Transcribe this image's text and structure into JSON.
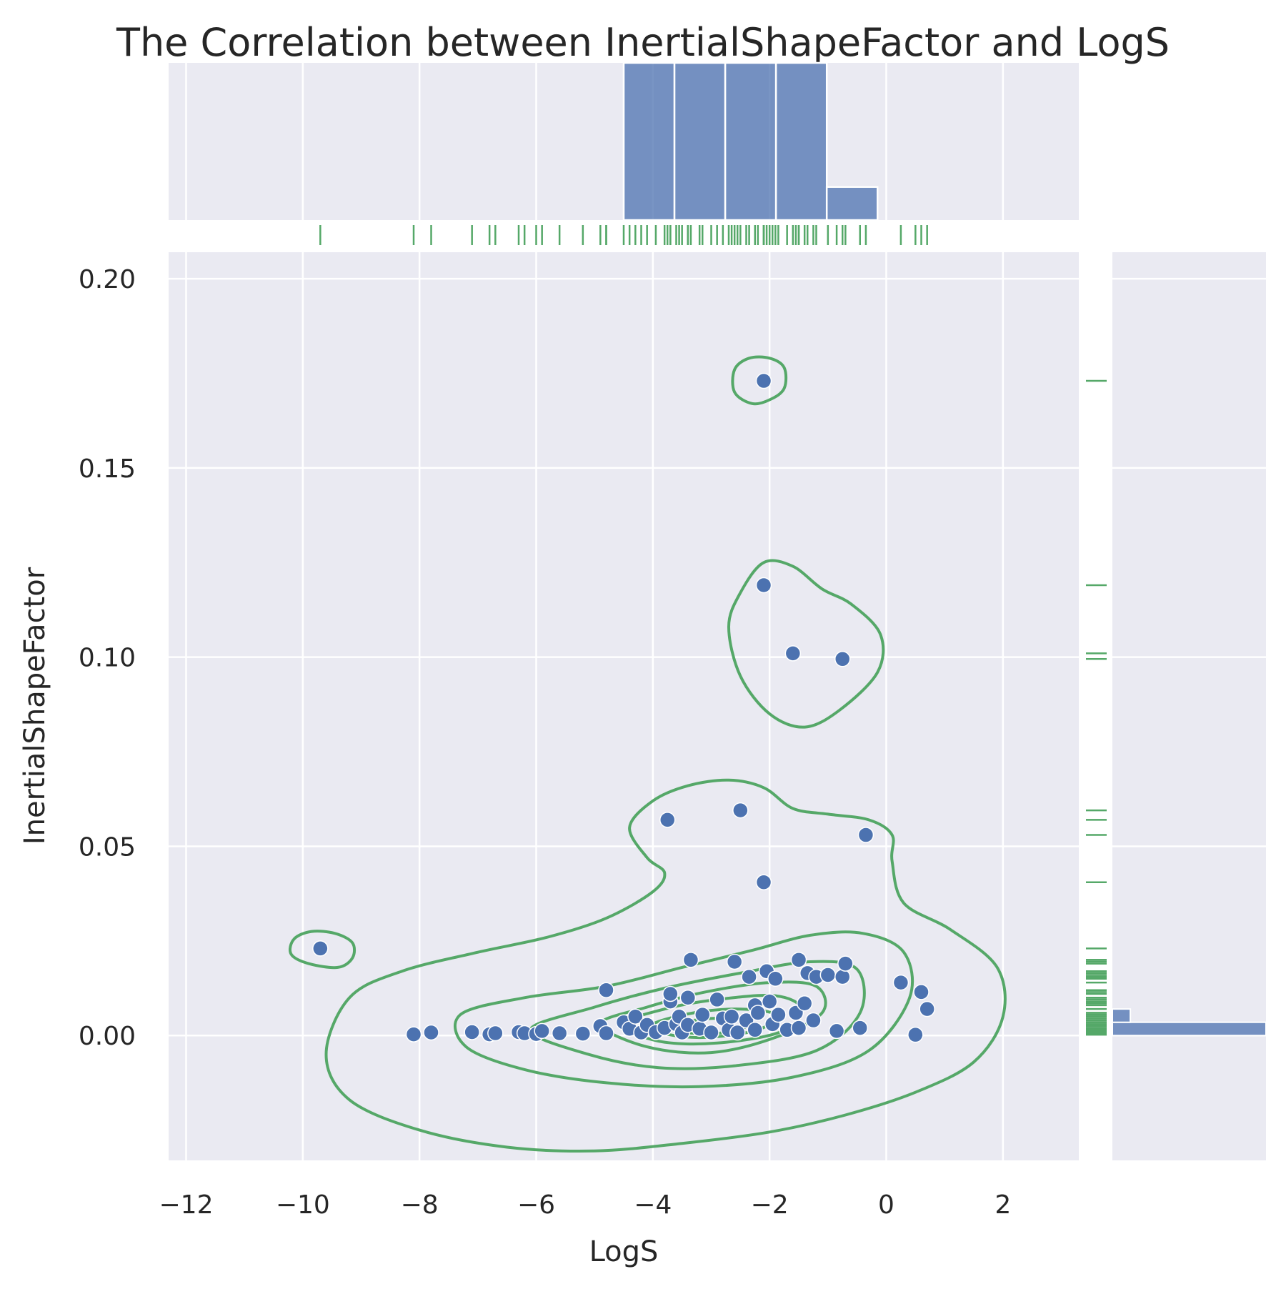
{
  "chart_data": {
    "type": "scatter",
    "title": "The Correlation between InertialShapeFactor and LogS",
    "xlabel": "LogS",
    "ylabel": "InertialShapeFactor",
    "xlim": [
      -12.3,
      3.3
    ],
    "ylim": [
      -0.033,
      0.207
    ],
    "x_ticks": [
      -12,
      -10,
      -8,
      -6,
      -4,
      -2,
      0,
      2
    ],
    "x_tick_labels": [
      "−12",
      "−10",
      "−8",
      "−6",
      "−4",
      "−2",
      "0",
      "2"
    ],
    "y_ticks": [
      0.0,
      0.05,
      0.1,
      0.15,
      0.2
    ],
    "y_tick_labels": [
      "0.00",
      "0.05",
      "0.10",
      "0.15",
      "0.20"
    ],
    "grid": true,
    "colors": {
      "background": "#eaeaf2",
      "grid": "#ffffff",
      "points": "#4c72b0",
      "kde": "#55a868",
      "rug": "#55a868",
      "hist": "#4c72b0"
    },
    "points": [
      [
        -9.7,
        0.023
      ],
      [
        -8.1,
        0.0003
      ],
      [
        -7.8,
        0.0008
      ],
      [
        -7.1,
        0.0009
      ],
      [
        -6.8,
        0.0003
      ],
      [
        -6.7,
        0.0006
      ],
      [
        -6.3,
        0.0009
      ],
      [
        -6.2,
        0.0006
      ],
      [
        -6.0,
        0.0004
      ],
      [
        -5.9,
        0.0012
      ],
      [
        -5.6,
        0.0006
      ],
      [
        -5.2,
        0.0005
      ],
      [
        -4.9,
        0.0025
      ],
      [
        -4.8,
        0.0006
      ],
      [
        -4.8,
        0.012
      ],
      [
        -4.5,
        0.0035
      ],
      [
        -4.4,
        0.0018
      ],
      [
        -4.3,
        0.005
      ],
      [
        -4.2,
        0.0008
      ],
      [
        -4.1,
        0.0028
      ],
      [
        -3.95,
        0.0009
      ],
      [
        -3.8,
        0.002
      ],
      [
        -3.75,
        0.057
      ],
      [
        -3.7,
        0.009
      ],
      [
        -3.7,
        0.011
      ],
      [
        -3.6,
        0.003
      ],
      [
        -3.55,
        0.005
      ],
      [
        -3.5,
        0.0008
      ],
      [
        -3.4,
        0.0028
      ],
      [
        -3.4,
        0.01
      ],
      [
        -3.35,
        0.02
      ],
      [
        -3.2,
        0.0018
      ],
      [
        -3.15,
        0.0055
      ],
      [
        -3.0,
        0.0008
      ],
      [
        -2.9,
        0.0095
      ],
      [
        -2.8,
        0.0045
      ],
      [
        -2.7,
        0.0015
      ],
      [
        -2.65,
        0.005
      ],
      [
        -2.6,
        0.0195
      ],
      [
        -2.55,
        0.0008
      ],
      [
        -2.5,
        0.0595
      ],
      [
        -2.4,
        0.004
      ],
      [
        -2.35,
        0.0155
      ],
      [
        -2.25,
        0.0015
      ],
      [
        -2.25,
        0.008
      ],
      [
        -2.2,
        0.006
      ],
      [
        -2.1,
        0.173
      ],
      [
        -2.1,
        0.119
      ],
      [
        -2.1,
        0.0405
      ],
      [
        -2.05,
        0.017
      ],
      [
        -2.0,
        0.009
      ],
      [
        -1.95,
        0.003
      ],
      [
        -1.9,
        0.015
      ],
      [
        -1.85,
        0.0055
      ],
      [
        -1.7,
        0.0015
      ],
      [
        -1.6,
        0.101
      ],
      [
        -1.55,
        0.006
      ],
      [
        -1.5,
        0.002
      ],
      [
        -1.5,
        0.02
      ],
      [
        -1.4,
        0.0085
      ],
      [
        -1.35,
        0.0165
      ],
      [
        -1.25,
        0.004
      ],
      [
        -1.2,
        0.0155
      ],
      [
        -1.0,
        0.016
      ],
      [
        -0.85,
        0.0012
      ],
      [
        -0.75,
        0.0995
      ],
      [
        -0.75,
        0.0155
      ],
      [
        -0.7,
        0.019
      ],
      [
        -0.45,
        0.002
      ],
      [
        -0.35,
        0.053
      ],
      [
        0.25,
        0.014
      ],
      [
        0.5,
        0.0002
      ],
      [
        0.6,
        0.0115
      ],
      [
        0.7,
        0.007
      ]
    ],
    "kde_levels": [
      [
        [
          -9.9,
          0.019
        ],
        [
          -9.4,
          0.018
        ],
        [
          -9.15,
          0.0205
        ],
        [
          -9.15,
          0.0245
        ],
        [
          -9.45,
          0.027
        ],
        [
          -9.85,
          0.0275
        ],
        [
          -10.15,
          0.0255
        ],
        [
          -10.2,
          0.0215
        ]
      ],
      [
        [
          -2.6,
          0.17
        ],
        [
          -2.3,
          0.167
        ],
        [
          -2.0,
          0.168
        ],
        [
          -1.75,
          0.171
        ],
        [
          -1.75,
          0.1765
        ],
        [
          -2.0,
          0.179
        ],
        [
          -2.35,
          0.179
        ],
        [
          -2.6,
          0.176
        ]
      ],
      [
        [
          -2.7,
          0.108
        ],
        [
          -2.5,
          0.117
        ],
        [
          -2.1,
          0.125
        ],
        [
          -1.6,
          0.124
        ],
        [
          -1.1,
          0.118
        ],
        [
          -0.6,
          0.114
        ],
        [
          -0.1,
          0.106
        ],
        [
          -0.15,
          0.096
        ],
        [
          -0.8,
          0.086
        ],
        [
          -1.4,
          0.0815
        ],
        [
          -2.0,
          0.085
        ],
        [
          -2.5,
          0.095
        ]
      ],
      [
        [
          -4.4,
          0.055
        ],
        [
          -4.0,
          0.062
        ],
        [
          -3.4,
          0.066
        ],
        [
          -2.7,
          0.0675
        ],
        [
          -2.1,
          0.0655
        ],
        [
          -1.6,
          0.06
        ],
        [
          -1.0,
          0.0585
        ],
        [
          -0.3,
          0.057
        ],
        [
          0.1,
          0.053
        ],
        [
          0.1,
          0.046
        ],
        [
          0.3,
          0.035
        ],
        [
          1.1,
          0.028
        ],
        [
          1.9,
          0.018
        ],
        [
          2.0,
          0.005
        ],
        [
          1.5,
          -0.007
        ],
        [
          0.5,
          -0.015
        ],
        [
          -0.7,
          -0.021
        ],
        [
          -2.0,
          -0.0255
        ],
        [
          -3.5,
          -0.0285
        ],
        [
          -5.0,
          -0.0305
        ],
        [
          -6.5,
          -0.0295
        ],
        [
          -8.0,
          -0.025
        ],
        [
          -9.2,
          -0.017
        ],
        [
          -9.6,
          -0.005
        ],
        [
          -9.2,
          0.01
        ],
        [
          -8.3,
          0.017
        ],
        [
          -7.0,
          0.022
        ],
        [
          -5.8,
          0.026
        ],
        [
          -4.8,
          0.031
        ],
        [
          -4.0,
          0.038
        ],
        [
          -3.8,
          0.043
        ],
        [
          -4.1,
          0.047
        ]
      ],
      [
        [
          -7.3,
          0.0055
        ],
        [
          -6.2,
          0.01
        ],
        [
          -4.8,
          0.013
        ],
        [
          -3.5,
          0.018
        ],
        [
          -2.3,
          0.0225
        ],
        [
          -1.3,
          0.0265
        ],
        [
          -0.4,
          0.027
        ],
        [
          0.3,
          0.022
        ],
        [
          0.4,
          0.01
        ],
        [
          -0.3,
          -0.004
        ],
        [
          -1.6,
          -0.011
        ],
        [
          -3.2,
          -0.0135
        ],
        [
          -4.8,
          -0.0125
        ],
        [
          -6.2,
          -0.009
        ],
        [
          -7.2,
          -0.003
        ]
      ],
      [
        [
          -6.1,
          0.0015
        ],
        [
          -5.0,
          0.0075
        ],
        [
          -3.8,
          0.0125
        ],
        [
          -2.5,
          0.0165
        ],
        [
          -1.3,
          0.0195
        ],
        [
          -0.5,
          0.0175
        ],
        [
          -0.45,
          0.006
        ],
        [
          -1.2,
          -0.004
        ],
        [
          -2.6,
          -0.008
        ],
        [
          -3.9,
          -0.0085
        ],
        [
          -5.1,
          -0.005
        ]
      ],
      [
        [
          -4.9,
          0.003
        ],
        [
          -4.1,
          0.0075
        ],
        [
          -3.1,
          0.0115
        ],
        [
          -2.0,
          0.014
        ],
        [
          -1.2,
          0.013
        ],
        [
          -1.1,
          0.006
        ],
        [
          -1.9,
          -0.0005
        ],
        [
          -3.0,
          -0.0045
        ],
        [
          -4.1,
          -0.003
        ]
      ],
      [
        [
          -4.5,
          0.003
        ],
        [
          -3.8,
          0.007
        ],
        [
          -2.9,
          0.0095
        ],
        [
          -1.9,
          0.0105
        ],
        [
          -1.45,
          0.007
        ],
        [
          -1.8,
          0.001
        ],
        [
          -2.9,
          -0.002
        ],
        [
          -3.9,
          -0.0015
        ]
      ],
      [
        [
          -4.0,
          0.003
        ],
        [
          -3.3,
          0.006
        ],
        [
          -2.5,
          0.007
        ],
        [
          -1.9,
          0.0055
        ],
        [
          -2.2,
          0.0015
        ],
        [
          -3.1,
          -0.0005
        ],
        [
          -3.8,
          0.0005
        ]
      ],
      [
        [
          -3.6,
          0.003
        ],
        [
          -3.0,
          0.0045
        ],
        [
          -2.4,
          0.004
        ],
        [
          -2.5,
          0.0015
        ],
        [
          -3.0,
          0.0005
        ],
        [
          -3.5,
          0.001
        ]
      ]
    ],
    "marginal_x_hist": {
      "bin_edges": [
        -4.5,
        -3.63,
        -2.76,
        -1.89,
        -1.02,
        -0.15
      ],
      "counts": [
        19,
        19,
        19,
        19,
        4
      ]
    },
    "marginal_y_hist": {
      "bin_edges": [
        0.0,
        0.0035,
        0.007
      ],
      "counts": [
        60,
        7
      ]
    }
  }
}
